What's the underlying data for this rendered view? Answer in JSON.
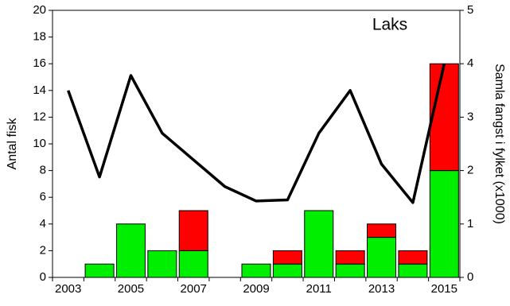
{
  "chart_data": {
    "type": "bar",
    "annotation": "Laks",
    "ylabel": "Antal fisk",
    "y2label": "Samla fangst i fylket  (x1000)",
    "categories": [
      "2003",
      null,
      "2005",
      null,
      "2007",
      null,
      "2009",
      null,
      "2011",
      null,
      "2013",
      null,
      "2015"
    ],
    "series": [
      {
        "color": "#00ee00",
        "values": [
          0,
          1,
          4,
          2,
          2,
          0,
          1,
          1,
          5,
          1,
          3,
          1,
          8
        ]
      },
      {
        "color": "#ff0000",
        "values": [
          0,
          0,
          0,
          0,
          3,
          0,
          0,
          1,
          0,
          1,
          1,
          1,
          8
        ]
      },
      {
        "type": "line",
        "axis": "y2",
        "color": "#000000",
        "values": [
          3.5,
          1.88,
          3.78,
          2.7,
          2.2,
          1.7,
          1.43,
          1.45,
          2.7,
          3.5,
          2.12,
          1.4,
          4.0
        ]
      }
    ],
    "stacked": true,
    "ylim": [
      0,
      20
    ],
    "yticks": [
      0,
      2,
      4,
      6,
      8,
      10,
      12,
      14,
      16,
      18,
      20
    ],
    "y2lim": [
      0,
      5
    ],
    "y2ticks": [
      0,
      1,
      2,
      3,
      4,
      5
    ]
  }
}
